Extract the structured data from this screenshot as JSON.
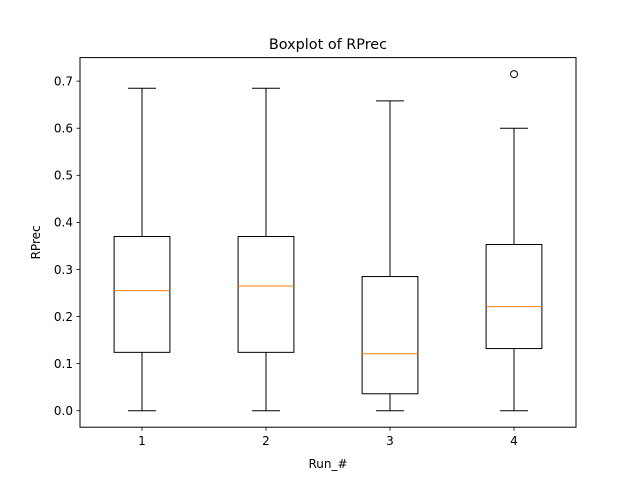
{
  "chart_data": {
    "type": "boxplot",
    "title": "Boxplot of RPrec",
    "xlabel": "Run_#",
    "ylabel": "RPrec",
    "categories": [
      "1",
      "2",
      "3",
      "4"
    ],
    "ylim": [
      -0.035,
      0.75
    ],
    "yticks": [
      0.0,
      0.1,
      0.2,
      0.3,
      0.4,
      0.5,
      0.6,
      0.7
    ],
    "ytick_labels": [
      "0.0",
      "0.1",
      "0.2",
      "0.3",
      "0.4",
      "0.5",
      "0.6",
      "0.7"
    ],
    "grid": false,
    "median_color": "#ff7f0e",
    "box_color": "#000000",
    "boxes": [
      {
        "label": "1",
        "whisker_low": 0.0,
        "q1": 0.124,
        "median": 0.255,
        "q3": 0.37,
        "whisker_high": 0.685,
        "outliers": []
      },
      {
        "label": "2",
        "whisker_low": 0.0,
        "q1": 0.124,
        "median": 0.265,
        "q3": 0.37,
        "whisker_high": 0.685,
        "outliers": []
      },
      {
        "label": "3",
        "whisker_low": 0.0,
        "q1": 0.036,
        "median": 0.121,
        "q3": 0.285,
        "whisker_high": 0.658,
        "outliers": []
      },
      {
        "label": "4",
        "whisker_low": 0.0,
        "q1": 0.132,
        "median": 0.221,
        "q3": 0.353,
        "whisker_high": 0.6,
        "outliers": [
          0.715
        ]
      }
    ]
  }
}
